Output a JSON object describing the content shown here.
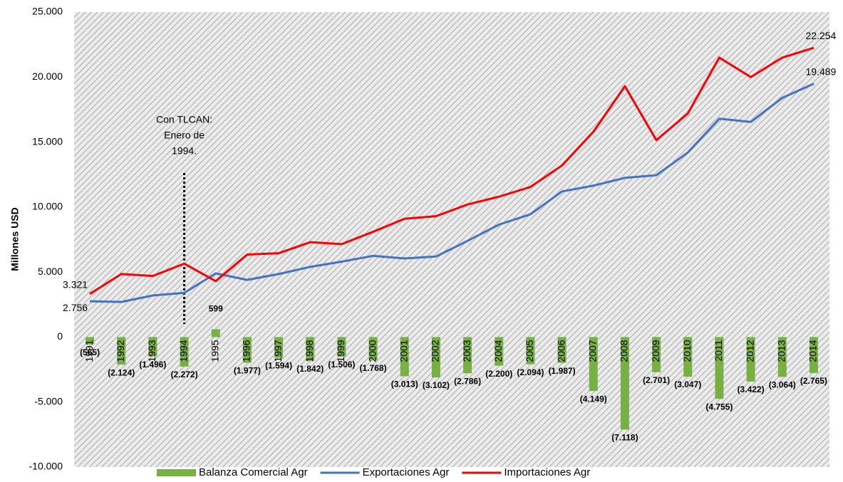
{
  "chart_data": {
    "type": "bar+line",
    "y_label": "Millones USD",
    "categories": [
      "1991",
      "1992",
      "1993",
      "1994",
      "1995",
      "1996",
      "1997",
      "1998",
      "1999",
      "2000",
      "2001",
      "2002",
      "2003",
      "2004",
      "2005",
      "2006",
      "2007",
      "2008",
      "2009",
      "2010",
      "2011",
      "2012",
      "2013",
      "2014"
    ],
    "series": [
      {
        "name": "Balanza Comercial Agr",
        "color": "#77b143",
        "kind": "bar",
        "values": [
          -565,
          -2124,
          -1496,
          -2272,
          599,
          -1977,
          -1594,
          -1842,
          -1506,
          -1768,
          -3013,
          -3102,
          -2786,
          -2200,
          -2094,
          -1987,
          -4149,
          -7118,
          -2701,
          -3047,
          -4755,
          -3422,
          -3064,
          -2765
        ],
        "value_labels": [
          "(565)",
          "(2.124)",
          "(1.496)",
          "(2.272)",
          "599",
          "(1.977)",
          "(1.594)",
          "(1.842)",
          "(1.506)",
          "(1.768)",
          "(3.013)",
          "(3.102)",
          "(2.786)",
          "(2.200)",
          "(2.094)",
          "(1.987)",
          "(4.149)",
          "(7.118)",
          "(2.701)",
          "(3.047)",
          "(4.755)",
          "(3.422)",
          "(3.064)",
          "(2.765)"
        ],
        "label_color": "#4e7a26"
      },
      {
        "name": "Exportaciones Agr",
        "color": "#4472c4",
        "kind": "line",
        "values": [
          2756,
          2700,
          3200,
          3400,
          4900,
          4400,
          4850,
          5400,
          5800,
          6250,
          6050,
          6200,
          7400,
          8650,
          9450,
          11200,
          11650,
          12250,
          12450,
          14200,
          16800,
          16550,
          18400,
          19489
        ],
        "value_labels": [
          "2.756",
          null,
          null,
          null,
          null,
          null,
          null,
          null,
          null,
          null,
          null,
          null,
          null,
          null,
          null,
          null,
          null,
          null,
          null,
          null,
          null,
          null,
          null,
          "19.489"
        ],
        "label_color": "#44546a"
      },
      {
        "name": "Importaciones Agr",
        "color": "#ff0000",
        "kind": "line",
        "values": [
          3321,
          4850,
          4700,
          5650,
          4300,
          6350,
          6450,
          7300,
          7150,
          8100,
          9100,
          9300,
          10200,
          10800,
          11550,
          13200,
          15800,
          19300,
          15150,
          17200,
          21500,
          20000,
          21500,
          22254
        ],
        "value_labels": [
          "3.321",
          null,
          null,
          null,
          null,
          null,
          null,
          null,
          null,
          null,
          null,
          null,
          null,
          null,
          null,
          null,
          null,
          null,
          null,
          null,
          null,
          null,
          null,
          "22.254"
        ],
        "label_color": "#c00000"
      }
    ],
    "ylim": [
      -10000,
      25000
    ],
    "yticks": [
      {
        "value": -10000,
        "label": "-10.000"
      },
      {
        "value": -5000,
        "label": "-5.000"
      },
      0,
      {
        "value": 5000,
        "label": "5.000"
      },
      {
        "value": 10000,
        "label": "10.000"
      },
      {
        "value": 15000,
        "label": "15.000"
      },
      {
        "value": 20000,
        "label": "20.000"
      },
      {
        "value": 25000,
        "label": "25.000"
      }
    ],
    "annotation": {
      "lines": [
        "Con TLCAN:",
        "Enero de",
        "1994."
      ],
      "category": "1994"
    }
  }
}
